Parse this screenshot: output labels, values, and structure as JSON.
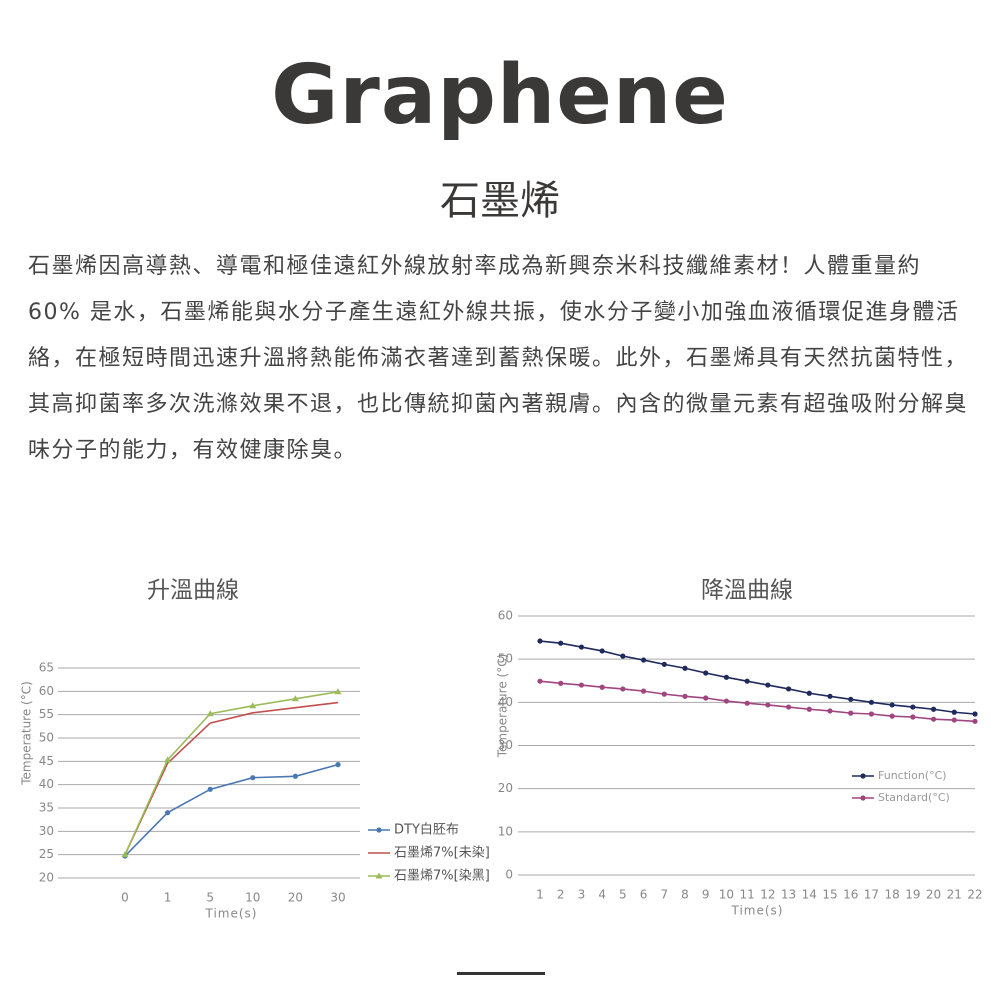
{
  "header": {
    "title": "Graphene",
    "subtitle": "石墨烯",
    "paragraph": "石墨烯因高導熱、導電和極佳遠紅外線放射率成為新興奈米科技纖維素材！人體重量約 60% 是水，石墨烯能與水分子產生遠紅外線共振，使水分子變小加強血液循環促進身體活絡，在極短時間迅速升溫將熱能佈滿衣著達到蓄熱保暖。此外，石墨烯具有天然抗菌特性，其高抑菌率多次洗滌效果不退，也比傳統抑菌內著親膚。內含的微量元素有超強吸附分解臭味分子的能力，有效健康除臭。"
  },
  "chart_data": [
    {
      "type": "line",
      "title": "升溫曲線",
      "x_label": "Time(s)",
      "y_label": "Temperature (°C)",
      "categories": [
        "0",
        "1",
        "5",
        "10",
        "20",
        "30"
      ],
      "ylim": [
        20,
        65
      ],
      "yticks": [
        20,
        25,
        30,
        35,
        40,
        45,
        50,
        55,
        60,
        65
      ],
      "grid": true,
      "legend": "right",
      "series": [
        {
          "name": "DTY白胚布",
          "color": "#4a78b0",
          "marker": "circle",
          "values": [
            24.7,
            34,
            39,
            41.5,
            41.8,
            44.3
          ]
        },
        {
          "name": "石墨烯7%[未染]",
          "color": "#c0504d",
          "marker": "none",
          "values": [
            25,
            44.6,
            53.2,
            55.4,
            56.5,
            57.6
          ]
        },
        {
          "name": "石墨烯7%[染黑]",
          "color": "#9bbb59",
          "marker": "triangle",
          "values": [
            25,
            45.3,
            55.2,
            56.9,
            58.4,
            59.9
          ]
        }
      ]
    },
    {
      "type": "line",
      "title": "降溫曲線",
      "x_label": "Time(s)",
      "y_label": "Temperature (°C)",
      "categories": [
        "1",
        "2",
        "3",
        "4",
        "5",
        "6",
        "7",
        "8",
        "9",
        "10",
        "11",
        "12",
        "13",
        "14",
        "15",
        "16",
        "17",
        "18",
        "19",
        "20",
        "21",
        "22"
      ],
      "ylim": [
        0,
        60
      ],
      "yticks": [
        0,
        10,
        20,
        30,
        40,
        50,
        60
      ],
      "grid": true,
      "legend": "right",
      "series": [
        {
          "name": "Function(°C)",
          "color": "#1f2a5c",
          "marker": "circle",
          "values": [
            54.2,
            53.7,
            52.8,
            51.9,
            50.7,
            49.8,
            48.8,
            47.9,
            46.8,
            45.8,
            44.9,
            44.0,
            43.1,
            42.1,
            41.4,
            40.7,
            40.0,
            39.4,
            38.9,
            38.4,
            37.7,
            37.3
          ]
        },
        {
          "name": "Standard(°C)",
          "color": "#a0457f",
          "marker": "circle",
          "values": [
            44.9,
            44.4,
            44.0,
            43.5,
            43.1,
            42.6,
            41.9,
            41.4,
            41.0,
            40.3,
            39.8,
            39.4,
            38.9,
            38.4,
            38.0,
            37.5,
            37.3,
            36.8,
            36.6,
            36.1,
            35.9,
            35.6
          ]
        }
      ]
    }
  ]
}
